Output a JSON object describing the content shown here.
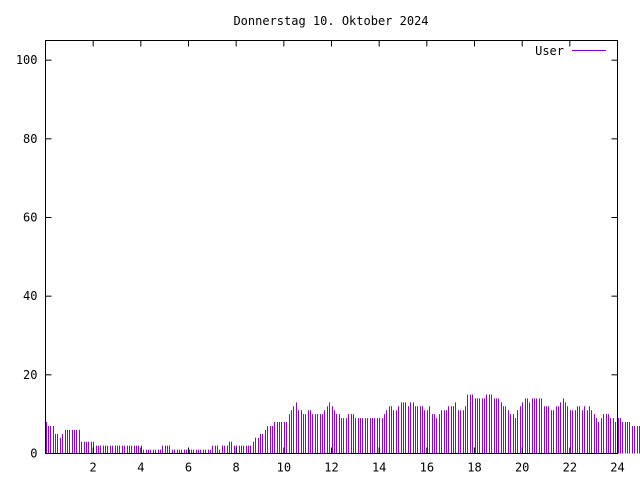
{
  "chart_data": {
    "type": "bar",
    "title": "Donnerstag 10. Oktober 2024",
    "xlabel": "",
    "ylabel": "",
    "xlim": [
      0,
      24
    ],
    "ylim": [
      0,
      105
    ],
    "x_ticks": [
      "2",
      "4",
      "6",
      "8",
      "10",
      "12",
      "14",
      "16",
      "18",
      "20",
      "22",
      "24"
    ],
    "y_ticks": [
      "0",
      "20",
      "40",
      "60",
      "80",
      "100"
    ],
    "grid": false,
    "legend_position": "top-right",
    "colors": {
      "series": "#9400d3",
      "axis": "#000000",
      "background": "#ffffff"
    },
    "series": [
      {
        "name": "User",
        "x_start": 0,
        "step": 0.1,
        "values": [
          8,
          7,
          7,
          7,
          5,
          5,
          4,
          5,
          6,
          6,
          6,
          6,
          6,
          6,
          6,
          3,
          3,
          3,
          3,
          3,
          3,
          2,
          2,
          2,
          2,
          2,
          2,
          2,
          2,
          2,
          2,
          2,
          2,
          2,
          2,
          2,
          2,
          2,
          2,
          2,
          2,
          1,
          1,
          1,
          1,
          1,
          1,
          1,
          1,
          2,
          2,
          2,
          2,
          1,
          1,
          1,
          1,
          1,
          1,
          1,
          1,
          1,
          1,
          1,
          1,
          1,
          1,
          1,
          1,
          1,
          2,
          2,
          2,
          1,
          2,
          2,
          2,
          3,
          3,
          2,
          2,
          2,
          2,
          2,
          2,
          2,
          2,
          3,
          4,
          4,
          5,
          5,
          6,
          7,
          7,
          7,
          8,
          8,
          8,
          8,
          8,
          8,
          10,
          11,
          12,
          13,
          11,
          11,
          10,
          10,
          11,
          11,
          10,
          10,
          10,
          10,
          10,
          11,
          12,
          13,
          12,
          11,
          10,
          10,
          9,
          9,
          9,
          10,
          10,
          10,
          9,
          9,
          9,
          9,
          9,
          9,
          9,
          9,
          9,
          9,
          9,
          9,
          10,
          11,
          12,
          12,
          11,
          11,
          12,
          13,
          13,
          13,
          12,
          13,
          13,
          12,
          12,
          12,
          12,
          11,
          11,
          12,
          10,
          10,
          9,
          10,
          11,
          11,
          11,
          12,
          12,
          12,
          13,
          11,
          11,
          11,
          12,
          15,
          15,
          15,
          14,
          14,
          14,
          14,
          14,
          15,
          15,
          15,
          14,
          14,
          14,
          13,
          12,
          12,
          11,
          10,
          10,
          9,
          11,
          12,
          13,
          14,
          14,
          13,
          14,
          14,
          14,
          14,
          14,
          12,
          12,
          12,
          11,
          11,
          12,
          12,
          13,
          14,
          13,
          12,
          11,
          11,
          11,
          12,
          12,
          11,
          12,
          11,
          12,
          11,
          10,
          9,
          8,
          9,
          10,
          10,
          10,
          9,
          9,
          8,
          9,
          9,
          8,
          8,
          8,
          8,
          7,
          7,
          7,
          7
        ]
      }
    ]
  }
}
